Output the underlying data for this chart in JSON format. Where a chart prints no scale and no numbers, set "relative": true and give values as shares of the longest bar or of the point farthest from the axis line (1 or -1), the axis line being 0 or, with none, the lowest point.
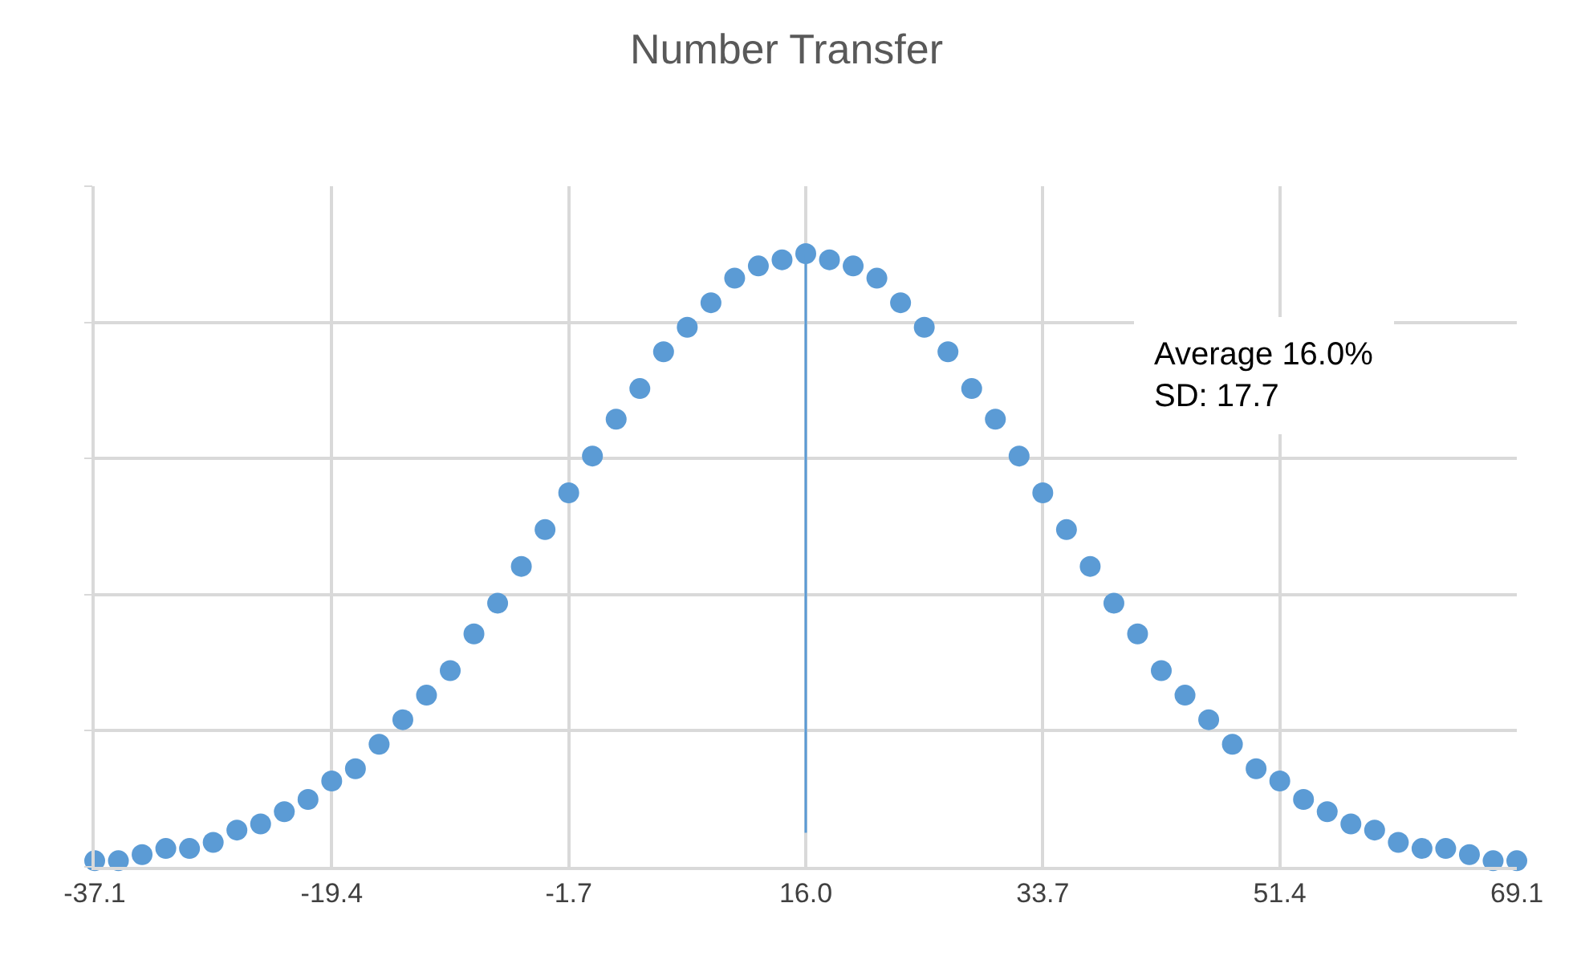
{
  "chart_data": {
    "type": "scatter",
    "title": "Number Transfer",
    "relative": true,
    "x": [
      -37.1,
      -35.33,
      -33.56,
      -31.79,
      -30.02,
      -28.25,
      -26.48,
      -24.71,
      -22.94,
      -21.17,
      -19.4,
      -17.63,
      -15.86,
      -14.09,
      -12.32,
      -10.55,
      -8.78,
      -7.01,
      -5.24,
      -3.47,
      -1.7,
      0.07,
      1.84,
      3.61,
      5.38,
      7.15,
      8.92,
      10.69,
      12.46,
      14.23,
      16.0,
      17.77,
      19.54,
      21.31,
      23.08,
      24.85,
      26.62,
      28.39,
      30.16,
      31.93,
      33.7,
      35.47,
      37.24,
      39.01,
      40.78,
      42.55,
      44.32,
      46.09,
      47.86,
      49.63,
      51.4,
      53.17,
      54.94,
      56.71,
      58.48,
      60.25,
      62.02,
      63.79,
      65.56,
      67.33,
      69.1
    ],
    "series": [
      {
        "color": "#5b9bd5",
        "values": [
          0.01,
          0.01,
          0.02,
          0.03,
          0.03,
          0.04,
          0.06,
          0.07,
          0.09,
          0.11,
          0.14,
          0.16,
          0.2,
          0.24,
          0.28,
          0.32,
          0.38,
          0.43,
          0.49,
          0.55,
          0.61,
          0.67,
          0.73,
          0.78,
          0.84,
          0.88,
          0.92,
          0.96,
          0.98,
          0.99,
          1,
          0.99,
          0.98,
          0.96,
          0.92,
          0.88,
          0.84,
          0.78,
          0.73,
          0.67,
          0.61,
          0.55,
          0.49,
          0.43,
          0.38,
          0.32,
          0.28,
          0.24,
          0.2,
          0.16,
          0.14,
          0.11,
          0.09,
          0.07,
          0.06,
          0.04,
          0.03,
          0.03,
          0.02,
          0.01,
          0.01
        ]
      }
    ],
    "xlim": [
      -37.1,
      69.1
    ],
    "xticks": [
      {
        "value": -37.1,
        "label": "-37.1"
      },
      {
        "value": -19.4,
        "label": "-19.4"
      },
      {
        "value": -1.7,
        "label": "-1.7"
      },
      {
        "value": 16.0,
        "label": "16.0"
      },
      {
        "value": 33.7,
        "label": "33.7"
      },
      {
        "value": 51.4,
        "label": "51.4"
      },
      {
        "value": 69.1,
        "label": "69.1"
      }
    ],
    "ref_lines": [
      {
        "axis": "x",
        "value": 16.0,
        "color": "#5b9bd5"
      }
    ],
    "annotations": [
      "Average 16.0%\nSD: 17.7"
    ],
    "grid": true,
    "marker": "circle"
  }
}
